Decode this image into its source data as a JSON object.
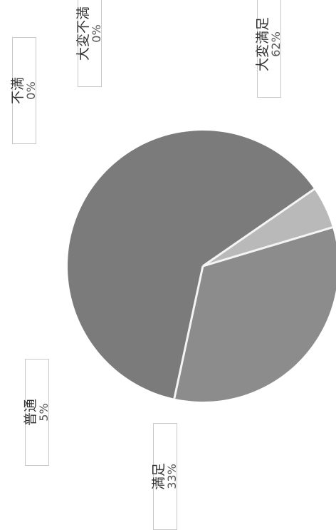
{
  "chart_data": {
    "type": "pie",
    "slices": [
      {
        "label": "大変満足",
        "value": 62,
        "percent_label": "62%",
        "color": "#7b7b7b"
      },
      {
        "label": "満足",
        "value": 33,
        "percent_label": "33%",
        "color": "#8c8c8c"
      },
      {
        "label": "普通",
        "value": 5,
        "percent_label": "5%",
        "color": "#b9b9b9"
      },
      {
        "label": "不満",
        "value": 0,
        "percent_label": "0%",
        "color": "#9a9a9a"
      },
      {
        "label": "大変不満",
        "value": 0,
        "percent_label": "0%",
        "color": "#9a9a9a"
      }
    ],
    "separator_color": "#f4f4f4",
    "label_border_color": "#c9c9c9"
  }
}
